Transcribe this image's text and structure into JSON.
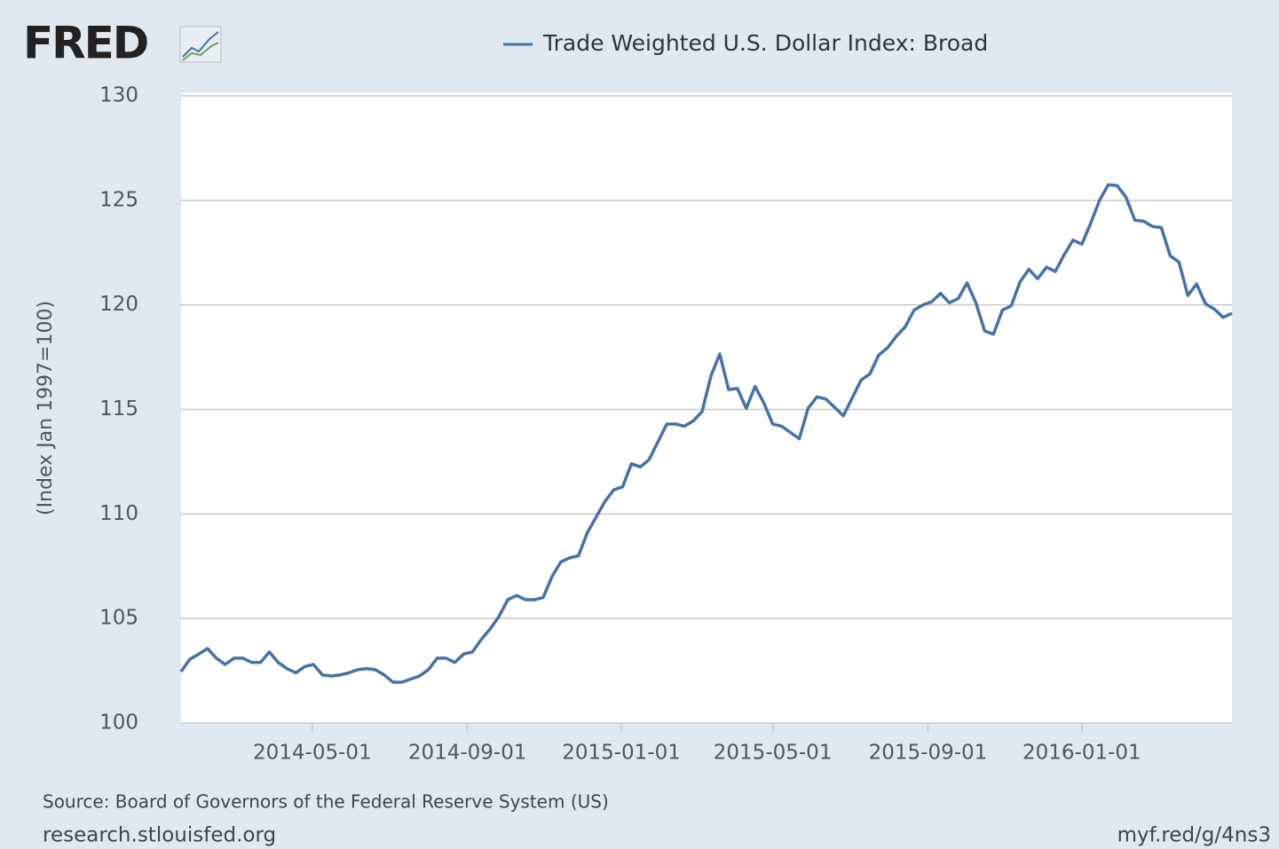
{
  "chart_data": {
    "type": "line",
    "logo": "FRED",
    "y_label": "(Index Jan 1997=100)",
    "source": "Source: Board of Governors of the Federal Reserve System (US)",
    "footer_left": "research.stlouisfed.org",
    "footer_right": "myf.red/g/4ns3",
    "x": [
      "2014-01-17",
      "2014-01-24",
      "2014-01-31",
      "2014-02-07",
      "2014-02-14",
      "2014-02-21",
      "2014-02-28",
      "2014-03-07",
      "2014-03-14",
      "2014-03-21",
      "2014-03-28",
      "2014-04-04",
      "2014-04-11",
      "2014-04-18",
      "2014-04-25",
      "2014-05-02",
      "2014-05-09",
      "2014-05-16",
      "2014-05-23",
      "2014-05-30",
      "2014-06-06",
      "2014-06-13",
      "2014-06-20",
      "2014-06-27",
      "2014-07-04",
      "2014-07-11",
      "2014-07-18",
      "2014-07-25",
      "2014-08-01",
      "2014-08-08",
      "2014-08-15",
      "2014-08-22",
      "2014-08-29",
      "2014-09-05",
      "2014-09-12",
      "2014-09-19",
      "2014-09-26",
      "2014-10-03",
      "2014-10-10",
      "2014-10-17",
      "2014-10-24",
      "2014-10-31",
      "2014-11-07",
      "2014-11-14",
      "2014-11-21",
      "2014-11-28",
      "2014-12-05",
      "2014-12-12",
      "2014-12-19",
      "2014-12-26",
      "2015-01-02",
      "2015-01-09",
      "2015-01-16",
      "2015-01-23",
      "2015-01-30",
      "2015-02-06",
      "2015-02-13",
      "2015-02-20",
      "2015-02-27",
      "2015-03-06",
      "2015-03-13",
      "2015-03-20",
      "2015-03-27",
      "2015-04-03",
      "2015-04-10",
      "2015-04-17",
      "2015-04-24",
      "2015-05-01",
      "2015-05-08",
      "2015-05-15",
      "2015-05-22",
      "2015-05-29",
      "2015-06-05",
      "2015-06-12",
      "2015-06-19",
      "2015-06-26",
      "2015-07-03",
      "2015-07-10",
      "2015-07-17",
      "2015-07-24",
      "2015-07-31",
      "2015-08-07",
      "2015-08-14",
      "2015-08-21",
      "2015-08-28",
      "2015-09-04",
      "2015-09-11",
      "2015-09-18",
      "2015-09-25",
      "2015-10-02",
      "2015-10-09",
      "2015-10-16",
      "2015-10-23",
      "2015-10-30",
      "2015-11-06",
      "2015-11-13",
      "2015-11-20",
      "2015-11-27",
      "2015-12-04",
      "2015-12-11",
      "2015-12-18",
      "2015-12-25",
      "2016-01-01",
      "2016-01-08",
      "2016-01-15",
      "2016-01-22",
      "2016-01-29",
      "2016-02-05",
      "2016-02-12",
      "2016-02-19",
      "2016-02-26",
      "2016-03-04",
      "2016-03-11",
      "2016-03-18",
      "2016-03-25",
      "2016-04-01",
      "2016-04-08",
      "2016-04-15",
      "2016-04-22",
      "2016-04-29"
    ],
    "series": [
      {
        "name": "Trade Weighted U.S. Dollar Index: Broad",
        "color": "#4572a7",
        "values": [
          102.46,
          103.05,
          103.3,
          103.56,
          103.1,
          102.8,
          103.1,
          103.1,
          102.9,
          102.9,
          103.4,
          102.9,
          102.6,
          102.4,
          102.7,
          102.8,
          102.3,
          102.25,
          102.3,
          102.4,
          102.55,
          102.6,
          102.55,
          102.3,
          101.95,
          101.95,
          102.1,
          102.25,
          102.55,
          103.1,
          103.1,
          102.9,
          103.3,
          103.4,
          104.0,
          104.5,
          105.1,
          105.9,
          106.1,
          105.9,
          105.9,
          106.0,
          107.0,
          107.7,
          107.9,
          108.0,
          109.1,
          109.85,
          110.6,
          111.15,
          111.3,
          112.4,
          112.25,
          112.6,
          113.45,
          114.3,
          114.3,
          114.2,
          114.45,
          114.9,
          116.6,
          117.65,
          115.95,
          116.0,
          115.05,
          116.1,
          115.3,
          114.3,
          114.2,
          113.9,
          113.6,
          115.05,
          115.6,
          115.5,
          115.1,
          114.7,
          115.55,
          116.4,
          116.7,
          117.6,
          117.95,
          118.5,
          118.95,
          119.75,
          120.0,
          120.15,
          120.55,
          120.1,
          120.3,
          121.05,
          120.1,
          118.75,
          118.6,
          119.75,
          119.95,
          121.1,
          121.7,
          121.25,
          121.8,
          121.6,
          122.4,
          123.1,
          122.9,
          123.9,
          125.0,
          125.75,
          125.7,
          125.15,
          124.05,
          124.0,
          123.75,
          123.7,
          122.35,
          122.05,
          120.45,
          121.0,
          120.05,
          119.8,
          119.4,
          119.6
        ]
      }
    ],
    "xlim": [
      "2014-01-17",
      "2016-04-29"
    ],
    "xticks": [
      "2014-05-01",
      "2014-09-01",
      "2015-01-01",
      "2015-05-01",
      "2015-09-01",
      "2016-01-01"
    ],
    "ylim": [
      100,
      130
    ],
    "yticks": [
      100,
      105,
      110,
      115,
      120,
      125,
      130
    ],
    "grid": true
  }
}
